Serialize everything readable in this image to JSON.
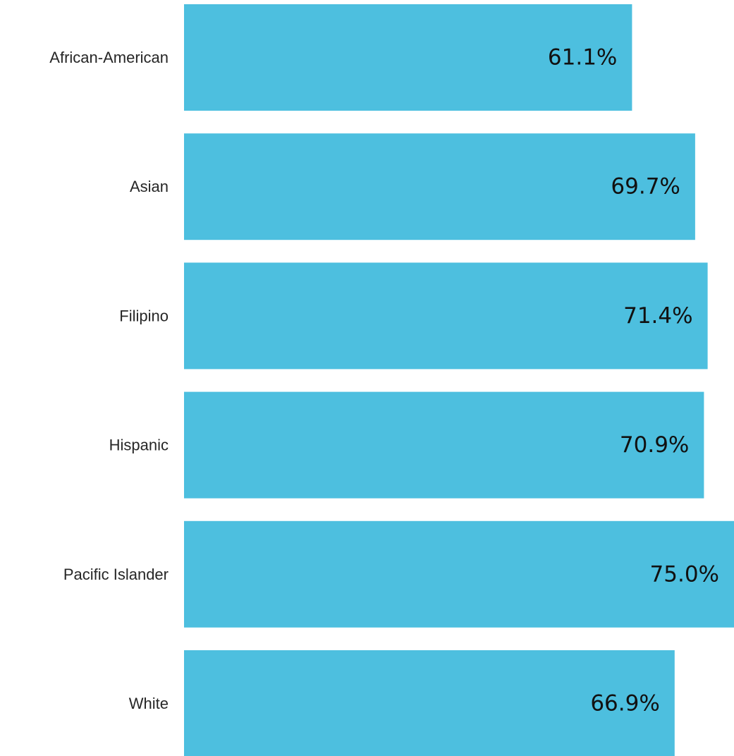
{
  "chart_data": {
    "type": "bar",
    "orientation": "horizontal",
    "categories": [
      "African-American",
      "Asian",
      "Filipino",
      "Hispanic",
      "Pacific Islander",
      "White"
    ],
    "values": [
      61.1,
      69.7,
      71.4,
      70.9,
      75.0,
      66.9
    ],
    "value_labels": [
      "61.1%",
      "69.7%",
      "71.4%",
      "70.9%",
      "75.0%",
      "66.9%"
    ],
    "value_axis_unit": "%",
    "xlim": [
      0,
      75.0
    ],
    "grid": false,
    "legend": "none",
    "bar_color": "#4DBFDF",
    "title": "",
    "xlabel": "",
    "ylabel": ""
  }
}
